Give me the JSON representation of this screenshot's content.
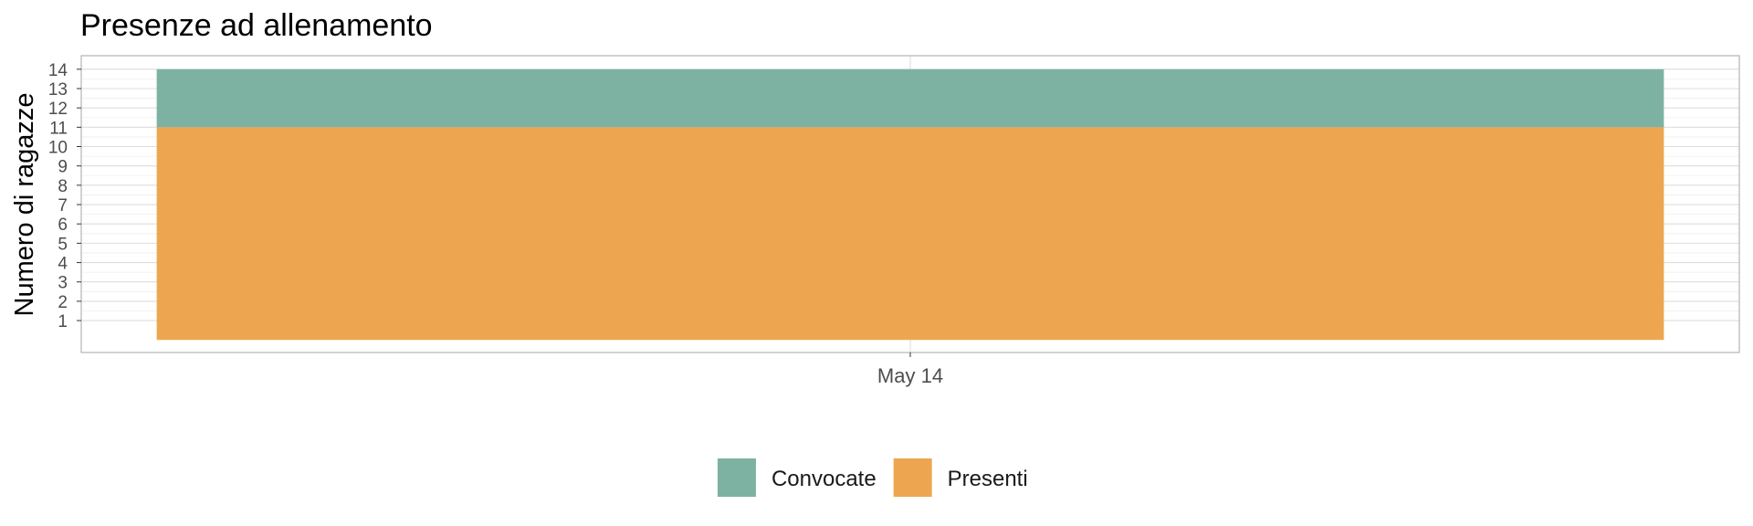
{
  "chart_data": {
    "type": "bar",
    "stacked": true,
    "title": "Presenze ad allenamento",
    "xlabel": "",
    "ylabel": "Numero di ragazze",
    "categories": [
      "May 14"
    ],
    "series": [
      {
        "name": "Presenti",
        "values": [
          11
        ],
        "color": "#EDA64F"
      },
      {
        "name": "Convocate",
        "values": [
          3
        ],
        "color": "#7DB2A3"
      }
    ],
    "totals": [
      14
    ],
    "y_ticks": [
      1,
      2,
      3,
      4,
      5,
      6,
      7,
      8,
      9,
      10,
      11,
      12,
      13,
      14
    ],
    "ylim": [
      -0.65,
      14.7
    ],
    "grid": true,
    "legend": {
      "position": "bottom",
      "entries": [
        {
          "label": "Convocate",
          "color": "#7DB2A3"
        },
        {
          "label": "Presenti",
          "color": "#EDA64F"
        }
      ]
    }
  }
}
